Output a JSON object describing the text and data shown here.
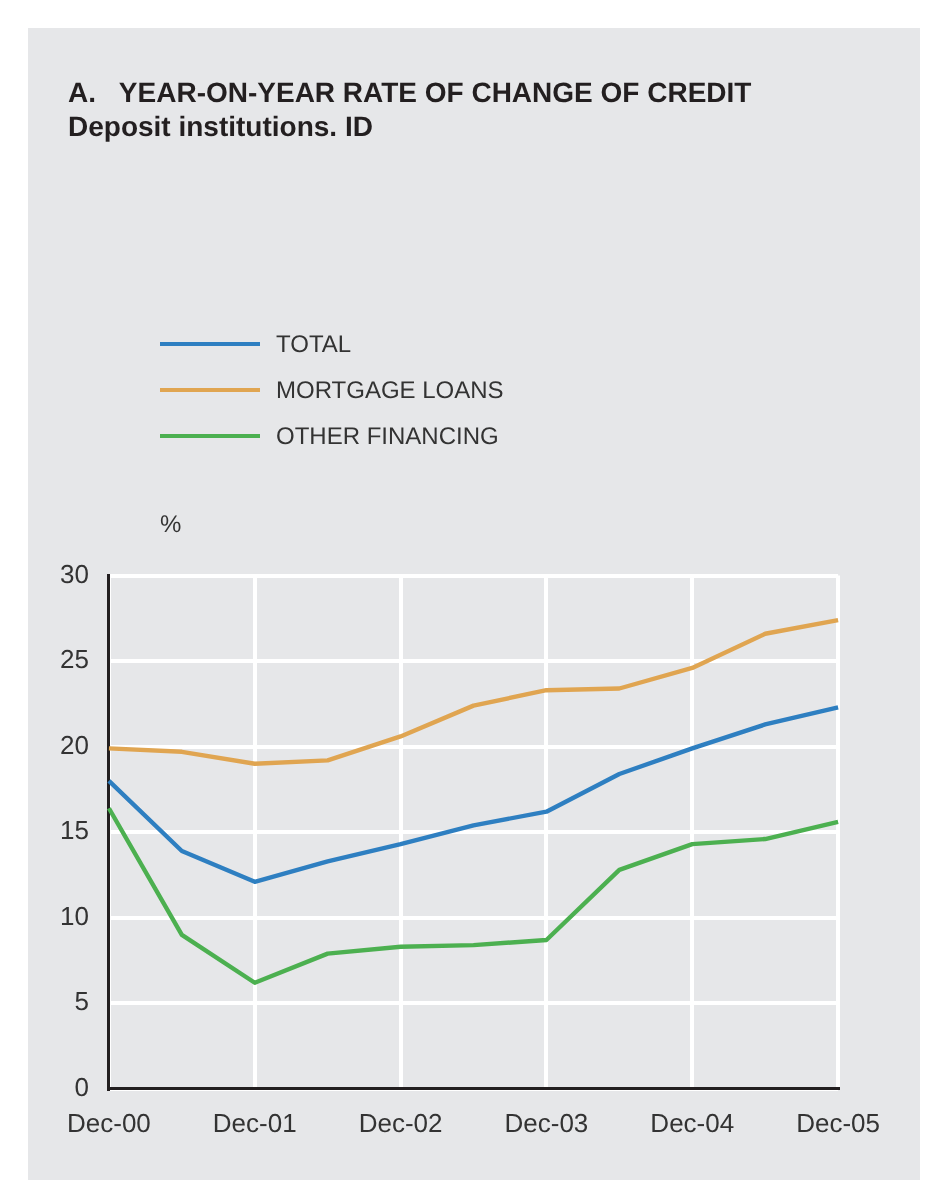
{
  "chart_data": {
    "type": "line",
    "title": "A.   YEAR-ON-YEAR RATE OF CHANGE OF CREDIT",
    "subtitle": "Deposit institutions. ID",
    "ylabel": "%",
    "categories": [
      "Dec-00",
      null,
      "Dec-01",
      null,
      "Dec-02",
      null,
      "Dec-03",
      null,
      "Dec-04",
      null,
      "Dec-05"
    ],
    "series": [
      {
        "name": "TOTAL",
        "color": "#2e7fc1",
        "values": [
          18.0,
          13.9,
          12.1,
          13.3,
          14.3,
          15.4,
          16.2,
          18.4,
          19.9,
          21.3,
          22.3
        ]
      },
      {
        "name": "MORTGAGE LOANS",
        "color": "#e0a551",
        "values": [
          19.9,
          19.7,
          19.0,
          19.2,
          20.6,
          22.4,
          23.3,
          23.4,
          24.6,
          26.6,
          27.4
        ]
      },
      {
        "name": "OTHER FINANCING",
        "color": "#4cb050",
        "values": [
          16.4,
          9.0,
          6.2,
          7.9,
          8.3,
          8.4,
          8.7,
          12.8,
          14.3,
          14.6,
          15.6
        ]
      }
    ],
    "ylim": [
      0,
      30
    ],
    "yticks": [
      0,
      5,
      10,
      15,
      20,
      25,
      30
    ],
    "grid": true,
    "legend": "top left",
    "marker": "none",
    "line_style": "solid"
  }
}
